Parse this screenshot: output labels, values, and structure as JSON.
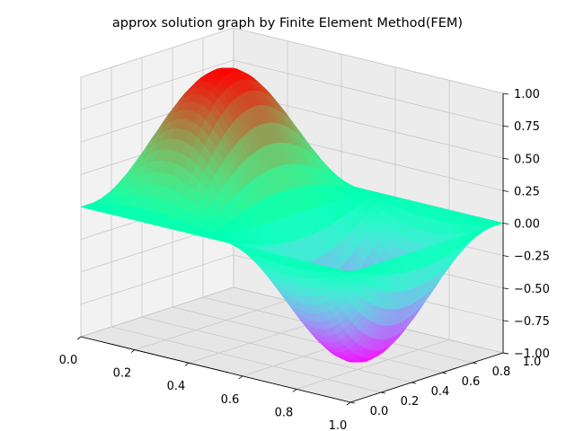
{
  "chart_data": {
    "type": "surface3d",
    "title": "approx solution graph by Finite Element Method(FEM)",
    "function": "sin(2*pi*x)*sin(pi*y)",
    "colormap": "rainbow",
    "xlim": [
      0,
      1
    ],
    "ylim": [
      0,
      1
    ],
    "zlim": [
      -1,
      1
    ],
    "x_ticks": [
      "0.0",
      "0.2",
      "0.4",
      "0.6",
      "0.8",
      "1.0"
    ],
    "y_ticks": [
      "0.0",
      "0.2",
      "0.4",
      "0.6",
      "0.8",
      "1.0"
    ],
    "z_ticks": [
      "−1.00",
      "−0.75",
      "−0.50",
      "−0.25",
      "0.00",
      "0.25",
      "0.50",
      "0.75",
      "1.00"
    ],
    "grid": true,
    "xlabel": "",
    "ylabel": "",
    "zlabel": ""
  }
}
